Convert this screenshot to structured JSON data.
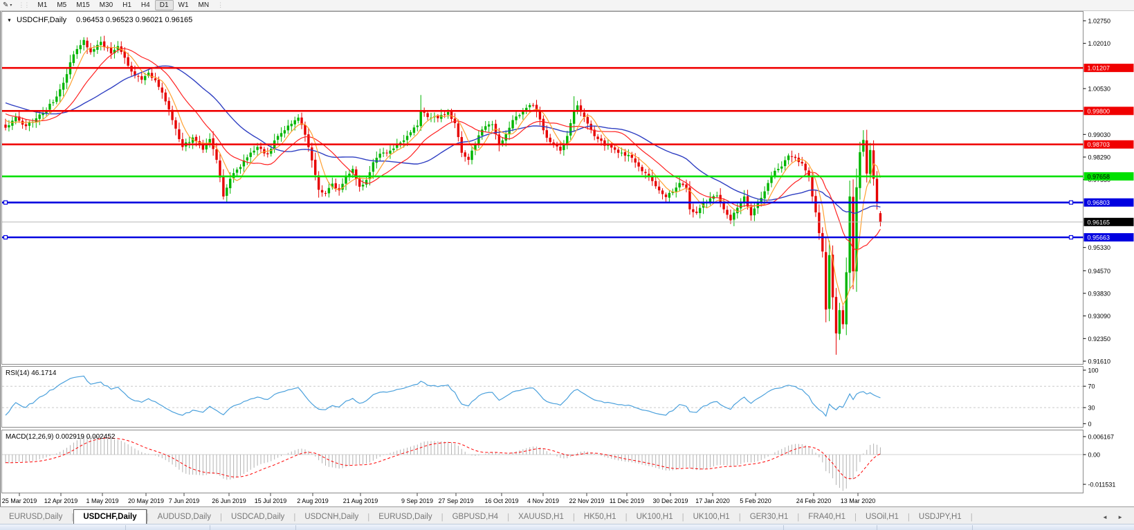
{
  "toolbar": {
    "tool_icon": "chart-draw-tool",
    "timeframes": [
      "M1",
      "M5",
      "M15",
      "M30",
      "H1",
      "H4",
      "D1",
      "W1",
      "MN"
    ],
    "active_timeframe": "D1"
  },
  "title": {
    "symbol": "USDCHF,Daily",
    "ohlc": "0.96453 0.96523 0.96021 0.96165",
    "open": "0.96453",
    "high": "0.96523",
    "low": "0.96021",
    "close": "0.96165"
  },
  "colors": {
    "up": "#00b500",
    "down": "#e60000",
    "ma_fast": "#ffa030",
    "ma_mid": "#ff2020",
    "ma_slow": "#2f3fc2",
    "res_line": "#f00000",
    "sup_line_green": "#00e000",
    "sup_line_blue": "#0000e0",
    "current_price_line": "#b8b8b8",
    "rsi_line": "#4aa0dc",
    "macd_bar": "#b2b2b2",
    "macd_signal": "#ff0000"
  },
  "chart_data": {
    "type": "candlestick",
    "symbol": "USDCHF",
    "timeframe": "Daily",
    "candles_total": 258,
    "anchors": [
      [
        0,
        0.9925
      ],
      [
        3,
        0.996
      ],
      [
        6,
        0.993
      ],
      [
        10,
        0.9968
      ],
      [
        14,
        1.0008
      ],
      [
        17,
        1.0072
      ],
      [
        20,
        1.0165
      ],
      [
        23,
        1.0212
      ],
      [
        25,
        1.0172
      ],
      [
        28,
        1.0206
      ],
      [
        31,
        1.0168
      ],
      [
        33,
        1.0192
      ],
      [
        36,
        1.0128
      ],
      [
        38,
        1.0095
      ],
      [
        40,
        1.0082
      ],
      [
        42,
        1.0105
      ],
      [
        44,
        1.008
      ],
      [
        46,
        1.004
      ],
      [
        48,
        0.9985
      ],
      [
        50,
        0.9922
      ],
      [
        52,
        0.9862
      ],
      [
        55,
        0.9893
      ],
      [
        58,
        0.9853
      ],
      [
        60,
        0.9888
      ],
      [
        62,
        0.982
      ],
      [
        64,
        0.97
      ],
      [
        66,
        0.9758
      ],
      [
        68,
        0.9788
      ],
      [
        71,
        0.9828
      ],
      [
        74,
        0.9862
      ],
      [
        77,
        0.9838
      ],
      [
        80,
        0.9898
      ],
      [
        83,
        0.9932
      ],
      [
        86,
        0.9958
      ],
      [
        88,
        0.9902
      ],
      [
        90,
        0.9818
      ],
      [
        92,
        0.9722
      ],
      [
        94,
        0.971
      ],
      [
        96,
        0.9742
      ],
      [
        98,
        0.972
      ],
      [
        100,
        0.9766
      ],
      [
        102,
        0.979
      ],
      [
        104,
        0.9732
      ],
      [
        106,
        0.9754
      ],
      [
        108,
        0.9812
      ],
      [
        110,
        0.984
      ],
      [
        113,
        0.985
      ],
      [
        116,
        0.9876
      ],
      [
        119,
        0.991
      ],
      [
        121,
        0.9932
      ],
      [
        122,
        0.9982
      ],
      [
        124,
        0.996
      ],
      [
        127,
        0.9956
      ],
      [
        130,
        0.9976
      ],
      [
        132,
        0.994
      ],
      [
        134,
        0.9843
      ],
      [
        136,
        0.982
      ],
      [
        139,
        0.99
      ],
      [
        141,
        0.993
      ],
      [
        143,
        0.9936
      ],
      [
        145,
        0.9868
      ],
      [
        147,
        0.9904
      ],
      [
        149,
        0.995
      ],
      [
        151,
        0.9966
      ],
      [
        153,
        0.999
      ],
      [
        155,
        0.9998
      ],
      [
        157,
        0.9952
      ],
      [
        159,
        0.9892
      ],
      [
        161,
        0.9868
      ],
      [
        163,
        0.985
      ],
      [
        165,
        0.9898
      ],
      [
        167,
        0.998
      ],
      [
        168,
        0.9998
      ],
      [
        170,
        0.996
      ],
      [
        172,
        0.9918
      ],
      [
        174,
        0.9888
      ],
      [
        176,
        0.9866
      ],
      [
        178,
        0.986
      ],
      [
        180,
        0.9843
      ],
      [
        183,
        0.9836
      ],
      [
        186,
        0.9798
      ],
      [
        189,
        0.9768
      ],
      [
        192,
        0.972
      ],
      [
        194,
        0.9698
      ],
      [
        196,
        0.9716
      ],
      [
        198,
        0.9744
      ],
      [
        200,
        0.9728
      ],
      [
        201,
        0.9658
      ],
      [
        203,
        0.9646
      ],
      [
        205,
        0.9678
      ],
      [
        207,
        0.9694
      ],
      [
        209,
        0.9703
      ],
      [
        211,
        0.9658
      ],
      [
        213,
        0.9622
      ],
      [
        215,
        0.9663
      ],
      [
        217,
        0.97
      ],
      [
        219,
        0.9638
      ],
      [
        221,
        0.9678
      ],
      [
        224,
        0.9744
      ],
      [
        226,
        0.9784
      ],
      [
        228,
        0.9798
      ],
      [
        230,
        0.9834
      ],
      [
        232,
        0.9826
      ],
      [
        234,
        0.9808
      ],
      [
        236,
        0.9764
      ],
      [
        237,
        0.97
      ],
      [
        238,
        0.9648
      ],
      [
        239,
        0.958
      ],
      [
        240,
        0.952
      ],
      [
        241,
        0.933
      ],
      [
        242,
        0.9508
      ],
      [
        243,
        0.937
      ],
      [
        244,
        0.9252
      ],
      [
        245,
        0.9328
      ],
      [
        246,
        0.9282
      ],
      [
        247,
        0.9452
      ],
      [
        248,
        0.97
      ],
      [
        249,
        0.9455
      ],
      [
        250,
        0.973
      ],
      [
        251,
        0.9845
      ],
      [
        252,
        0.9885
      ],
      [
        253,
        0.9775
      ],
      [
        254,
        0.9852
      ],
      [
        255,
        0.9758
      ],
      [
        256,
        0.968
      ],
      [
        257,
        0.9617
      ]
    ],
    "wick_overrides": {
      "29": {
        "high": 1.0226
      },
      "64": {
        "low": 0.969
      },
      "122": {
        "high": 1.0032
      },
      "167": {
        "high": 1.0028
      },
      "244": {
        "low": 0.9182
      },
      "252": {
        "high": 0.9917
      }
    },
    "last_candle": {
      "open": 0.96453,
      "high": 0.96523,
      "low": 0.96021,
      "close": 0.96165
    },
    "y_axis_ticks": [
      1.0275,
      1.0201,
      1.0053,
      0.9903,
      0.9829,
      0.9755,
      0.9533,
      0.9457,
      0.9383,
      0.9309,
      0.9235,
      0.9161
    ],
    "hlines": [
      {
        "name": "resistance-1",
        "price": 1.01207,
        "label": "1.01207",
        "color": "#f00000",
        "text": "#ffffff",
        "handles": false
      },
      {
        "name": "resistance-2",
        "price": 0.998,
        "label": "0.99800",
        "color": "#f00000",
        "text": "#ffffff",
        "handles": false
      },
      {
        "name": "resistance-3",
        "price": 0.98703,
        "label": "0.98703",
        "color": "#f00000",
        "text": "#ffffff",
        "handles": false
      },
      {
        "name": "support-green",
        "price": 0.97658,
        "label": "0.97658",
        "color": "#00e000",
        "text": "#000000",
        "handles": false
      },
      {
        "name": "support-blue-1",
        "price": 0.96803,
        "label": "0.96803",
        "color": "#0000e0",
        "text": "#ffffff",
        "handles": true
      },
      {
        "name": "support-blue-2",
        "price": 0.95663,
        "label": "0.95663",
        "color": "#0000e0",
        "text": "#ffffff",
        "handles": true
      }
    ],
    "current_price": {
      "value": 0.96165,
      "label": "0.96165"
    },
    "x_labels": [
      "25 Mar 2019",
      "12 Apr 2019",
      "1 May 2019",
      "20 May 2019",
      "7 Jun 2019",
      "26 Jun 2019",
      "15 Jul 2019",
      "2 Aug 2019",
      "21 Aug 2019",
      "9 Sep 2019",
      "27 Sep 2019",
      "16 Oct 2019",
      "4 Nov 2019",
      "22 Nov 2019",
      "11 Dec 2019",
      "30 Dec 2019",
      "17 Jan 2020",
      "5 Feb 2020",
      "24 Feb 2020",
      "13 Mar 2020"
    ],
    "rsi": {
      "label": "RSI(14) 46.1714",
      "period": 14,
      "value": 46.1714,
      "axis_labels": [
        "100",
        "70",
        "30",
        "0"
      ],
      "dashed_levels": [
        70,
        30
      ]
    },
    "macd": {
      "label": "MACD(12,26,9) 0.002919 0.002452",
      "fast": 12,
      "slow": 26,
      "signal_period": 9,
      "macd_value": 0.002919,
      "signal_value": 0.002452,
      "axis_labels": [
        "0.006167",
        "0.00",
        "-0.011531"
      ]
    }
  },
  "tabs": [
    {
      "label": "EURUSD,Daily",
      "active": false
    },
    {
      "label": "USDCHF,Daily",
      "active": true
    },
    {
      "label": "AUDUSD,Daily",
      "active": false
    },
    {
      "label": "USDCAD,Daily",
      "active": false
    },
    {
      "label": "USDCNH,Daily",
      "active": false
    },
    {
      "label": "EURUSD,Daily",
      "active": false
    },
    {
      "label": "GBPUSD,H4",
      "active": false
    },
    {
      "label": "XAUUSD,H1",
      "active": false
    },
    {
      "label": "HK50,H1",
      "active": false
    },
    {
      "label": "UK100,H1",
      "active": false
    },
    {
      "label": "UK100,H1",
      "active": false
    },
    {
      "label": "GER30,H1",
      "active": false
    },
    {
      "label": "FRA40,H1",
      "active": false
    },
    {
      "label": "USOil,H1",
      "active": false
    },
    {
      "label": "USDJPY,H1",
      "active": false
    }
  ],
  "tab_arrows": "◄ ►"
}
